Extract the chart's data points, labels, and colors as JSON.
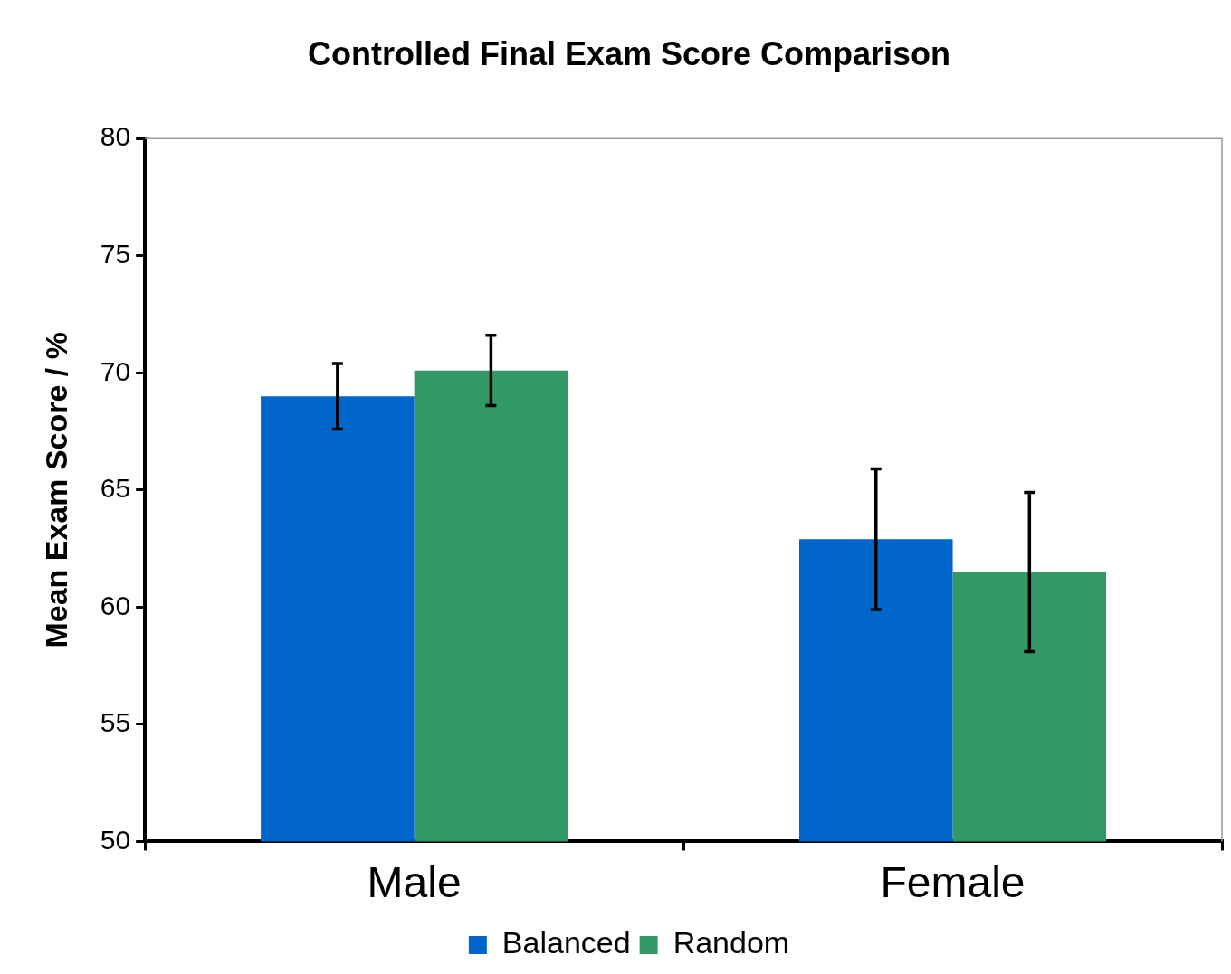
{
  "chart_data": {
    "type": "bar",
    "title": "Controlled Final Exam Score Comparison",
    "ylabel": "Mean Exam Score / %",
    "categories": [
      "Male",
      "Female"
    ],
    "series": [
      {
        "name": "Balanced",
        "color": "#0066cc",
        "values": [
          69.0,
          62.9
        ],
        "errors": [
          1.4,
          3.0
        ]
      },
      {
        "name": "Random",
        "color": "#339966",
        "values": [
          70.1,
          61.5
        ],
        "errors": [
          1.5,
          3.4
        ]
      }
    ],
    "ylim": [
      50,
      80
    ],
    "yticks": [
      50,
      55,
      60,
      65,
      70,
      75,
      80
    ],
    "grid": false,
    "legend": "bottom"
  }
}
